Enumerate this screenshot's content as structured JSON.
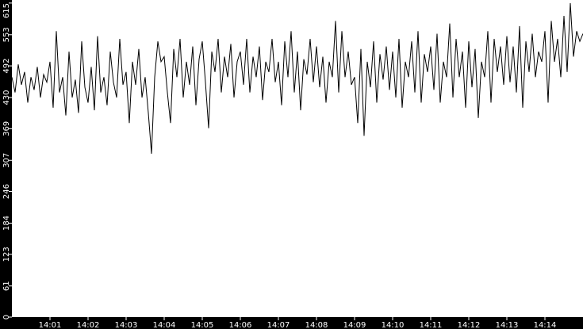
{
  "chart_data": {
    "type": "line",
    "title": "",
    "xlabel": "",
    "ylabel": "",
    "x_start": "14:00:00",
    "x_end": "14:15:00",
    "x_step_seconds": 5,
    "xlim": [
      "14:00",
      "14:15"
    ],
    "ylim": [
      0,
      621
    ],
    "x_ticks": [
      "14:01",
      "14:02",
      "14:03",
      "14:04",
      "14:05",
      "14:06",
      "14:07",
      "14:08",
      "14:09",
      "14:10",
      "14:11",
      "14:12",
      "14:13",
      "14:14"
    ],
    "y_ticks": [
      0,
      61,
      123,
      184,
      246,
      307,
      369,
      430,
      492,
      553,
      615
    ],
    "grid": false,
    "colors": {
      "background": "#000000",
      "plot": "#ffffff",
      "line": "#000000",
      "text": "#ffffff"
    },
    "values": [
      470,
      440,
      495,
      455,
      480,
      420,
      470,
      445,
      490,
      430,
      475,
      460,
      500,
      410,
      560,
      440,
      470,
      395,
      520,
      430,
      465,
      400,
      540,
      450,
      420,
      490,
      405,
      550,
      440,
      470,
      415,
      520,
      460,
      430,
      545,
      455,
      480,
      380,
      500,
      455,
      525,
      430,
      470,
      400,
      320,
      470,
      540,
      500,
      510,
      440,
      380,
      525,
      470,
      545,
      430,
      500,
      455,
      530,
      415,
      505,
      540,
      460,
      370,
      520,
      480,
      545,
      440,
      510,
      470,
      535,
      430,
      500,
      520,
      455,
      545,
      440,
      510,
      470,
      530,
      425,
      500,
      480,
      545,
      460,
      500,
      415,
      540,
      470,
      560,
      440,
      520,
      405,
      505,
      475,
      545,
      460,
      530,
      450,
      510,
      420,
      500,
      470,
      580,
      440,
      560,
      470,
      520,
      455,
      470,
      380,
      525,
      355,
      500,
      450,
      540,
      420,
      515,
      465,
      530,
      445,
      520,
      430,
      545,
      410,
      500,
      470,
      540,
      440,
      560,
      420,
      515,
      480,
      530,
      445,
      555,
      420,
      500,
      470,
      575,
      430,
      545,
      470,
      520,
      410,
      540,
      450,
      525,
      390,
      500,
      470,
      560,
      420,
      545,
      480,
      530,
      455,
      550,
      460,
      530,
      440,
      570,
      410,
      540,
      480,
      555,
      470,
      520,
      500,
      560,
      420,
      580,
      500,
      545,
      470,
      590,
      480,
      615,
      510,
      560,
      540,
      555
    ]
  }
}
